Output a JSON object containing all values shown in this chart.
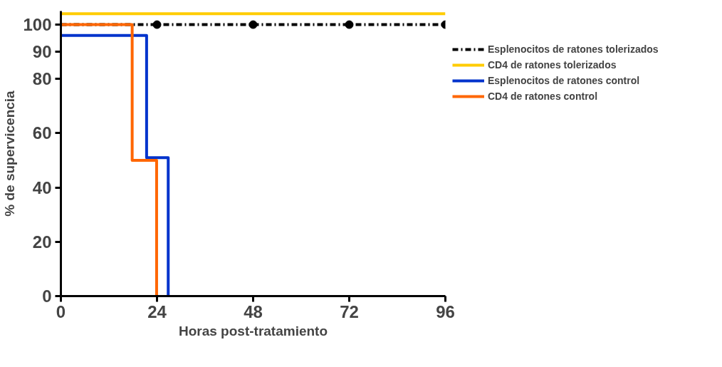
{
  "chart_data": {
    "type": "step",
    "xlabel": "Horas post-tratamiento",
    "ylabel": "% de supervicencia",
    "xlim": [
      0,
      96
    ],
    "xticks": [
      0,
      24,
      48,
      72,
      96
    ],
    "ylim": [
      0,
      105
    ],
    "yticks": [
      0,
      20,
      40,
      60,
      80,
      90,
      100
    ],
    "grid": false,
    "legend": "right",
    "marker": "none",
    "series": [
      {
        "name": "Esplenocitos de ratones tolerizados",
        "color": "#000000",
        "line_style": "dashed",
        "x": [
          0,
          96
        ],
        "values": [
          100,
          100
        ]
      },
      {
        "name": "CD4 de ratones tolerizados",
        "color": "#ffcc00",
        "x": [
          0,
          96
        ],
        "values": [
          104,
          104
        ]
      },
      {
        "name": "Esplenocitos de ratones control",
        "color": "#0033cc",
        "x": [
          0,
          21.4,
          26.8
        ],
        "values": [
          96,
          51,
          0
        ]
      },
      {
        "name": "CD4 de ratones control",
        "color": "#ff6600",
        "x": [
          0,
          17.8,
          23.9
        ],
        "values": [
          100,
          50,
          0
        ]
      },
      {
        "type": "scatter",
        "color": "#000000",
        "marker": "circle",
        "x": [
          24,
          48,
          72,
          96
        ],
        "values": [
          100,
          100,
          100,
          100
        ]
      }
    ]
  }
}
